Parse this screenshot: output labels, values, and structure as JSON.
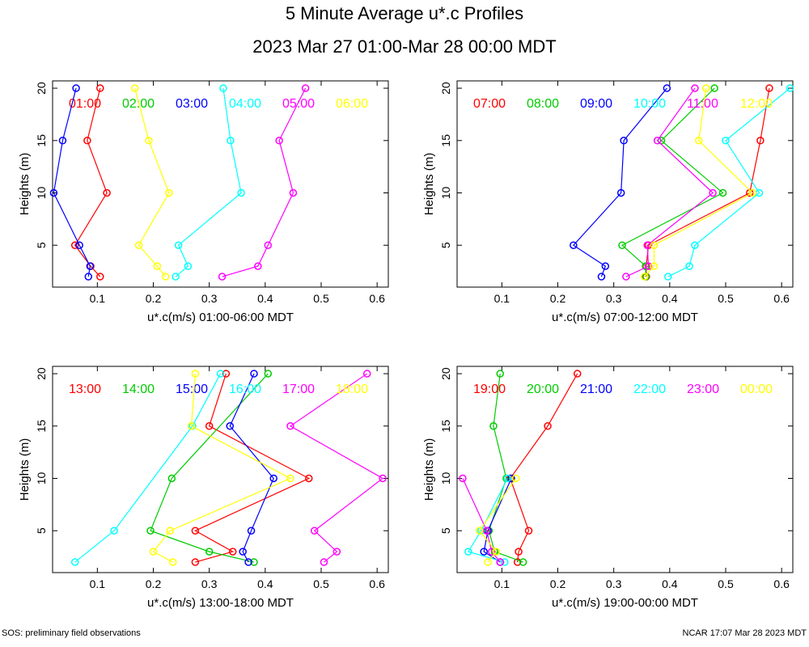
{
  "title": "5 Minute Average u*.c Profiles",
  "subtitle": "2023 Mar 27 01:00-Mar 28 00:00 MDT",
  "footer_left": "SOS: preliminary field observations",
  "footer_right": "NCAR 17:07 Mar 28 2023 MDT",
  "colors": [
    "#ff0000",
    "#00cc00",
    "#0000ff",
    "#00ffff",
    "#ff00ff",
    "#ffff00"
  ],
  "chart_data": [
    {
      "type": "line",
      "xlabel": "u*.c(m/s) 01:00-06:00 MDT",
      "ylabel": "Heights (m)",
      "xlim": [
        0.02,
        0.62
      ],
      "ylim": [
        1,
        20.7
      ],
      "xticks": [
        0.1,
        0.2,
        0.3,
        0.4,
        0.5,
        0.6
      ],
      "yticks": [
        5,
        10,
        15,
        20
      ],
      "y": [
        2,
        3,
        5,
        10,
        15,
        20
      ],
      "series": [
        {
          "name": "01:00",
          "x": [
            0.105,
            0.088,
            0.06,
            0.117,
            0.082,
            0.105
          ]
        },
        {
          "name": "02:00",
          "x": [
            null,
            null,
            null,
            null,
            null,
            null
          ]
        },
        {
          "name": "03:00",
          "x": [
            0.084,
            0.087,
            0.068,
            0.022,
            0.038,
            0.062
          ]
        },
        {
          "name": "04:00",
          "x": [
            0.24,
            0.262,
            0.245,
            0.357,
            0.338,
            0.325
          ]
        },
        {
          "name": "05:00",
          "x": [
            0.323,
            0.387,
            0.405,
            0.45,
            0.425,
            0.472
          ]
        },
        {
          "name": "06:00",
          "x": [
            0.222,
            0.207,
            0.174,
            0.228,
            0.192,
            0.167
          ]
        }
      ]
    },
    {
      "type": "line",
      "xlabel": "u*.c(m/s) 07:00-12:00 MDT",
      "ylabel": "Heights (m)",
      "xlim": [
        0.02,
        0.62
      ],
      "ylim": [
        1,
        20.7
      ],
      "xticks": [
        0.1,
        0.2,
        0.3,
        0.4,
        0.5,
        0.6
      ],
      "yticks": [
        5,
        10,
        15,
        20
      ],
      "y": [
        2,
        3,
        5,
        10,
        15,
        20
      ],
      "series": [
        {
          "name": "07:00",
          "x": [
            0.358,
            0.358,
            0.362,
            0.543,
            0.562,
            0.578
          ]
        },
        {
          "name": "08:00",
          "x": [
            0.357,
            0.357,
            0.315,
            0.495,
            0.385,
            0.48
          ]
        },
        {
          "name": "09:00",
          "x": [
            0.278,
            0.285,
            0.228,
            0.313,
            0.318,
            0.395
          ]
        },
        {
          "name": "10:00",
          "x": [
            0.397,
            0.435,
            0.445,
            0.56,
            0.5,
            0.615
          ]
        },
        {
          "name": "11:00",
          "x": [
            0.322,
            0.362,
            0.36,
            0.477,
            0.378,
            0.445
          ]
        },
        {
          "name": "12:00",
          "x": [
            0.355,
            0.372,
            0.372,
            0.548,
            0.452,
            0.465
          ]
        }
      ]
    },
    {
      "type": "line",
      "xlabel": "u*.c(m/s) 13:00-18:00 MDT",
      "ylabel": "Heights (m)",
      "xlim": [
        0.02,
        0.62
      ],
      "ylim": [
        1,
        20.7
      ],
      "xticks": [
        0.1,
        0.2,
        0.3,
        0.4,
        0.5,
        0.6
      ],
      "yticks": [
        5,
        10,
        15,
        20
      ],
      "y": [
        2,
        3,
        5,
        10,
        15,
        20
      ],
      "series": [
        {
          "name": "13:00",
          "x": [
            0.275,
            0.342,
            0.275,
            0.478,
            0.3,
            0.33
          ]
        },
        {
          "name": "14:00",
          "x": [
            0.38,
            0.3,
            0.195,
            0.233,
            null,
            0.405
          ]
        },
        {
          "name": "15:00",
          "x": [
            0.37,
            0.36,
            0.375,
            0.415,
            0.337,
            0.38
          ]
        },
        {
          "name": "16:00",
          "x": [
            0.06,
            null,
            0.13,
            null,
            0.27,
            0.32
          ]
        },
        {
          "name": "17:00",
          "x": [
            0.505,
            0.528,
            0.488,
            0.61,
            0.445,
            0.582
          ]
        },
        {
          "name": "18:00",
          "x": [
            0.235,
            0.2,
            0.23,
            0.445,
            0.268,
            0.275
          ]
        }
      ]
    },
    {
      "type": "line",
      "xlabel": "u*.c(m/s) 19:00-00:00 MDT",
      "ylabel": "Heights (m)",
      "xlim": [
        0.02,
        0.62
      ],
      "ylim": [
        1,
        20.7
      ],
      "xticks": [
        0.1,
        0.2,
        0.3,
        0.4,
        0.5,
        0.6
      ],
      "yticks": [
        5,
        10,
        15,
        20
      ],
      "y": [
        2,
        3,
        5,
        10,
        15,
        20
      ],
      "series": [
        {
          "name": "19:00",
          "x": [
            0.128,
            0.13,
            0.148,
            0.115,
            0.182,
            0.235
          ]
        },
        {
          "name": "20:00",
          "x": [
            0.138,
            0.087,
            0.077,
            0.108,
            0.085,
            0.097
          ]
        },
        {
          "name": "21:00",
          "x": [
            0.097,
            0.068,
            0.075,
            0.117,
            null,
            null
          ]
        },
        {
          "name": "22:00",
          "x": [
            0.105,
            0.04,
            0.063,
            0.11,
            null,
            null
          ]
        },
        {
          "name": "23:00",
          "x": [
            0.097,
            0.082,
            0.073,
            0.03,
            null,
            null
          ]
        },
        {
          "name": "00:00",
          "x": [
            0.075,
            0.09,
            0.06,
            0.125,
            null,
            null
          ]
        }
      ]
    }
  ]
}
